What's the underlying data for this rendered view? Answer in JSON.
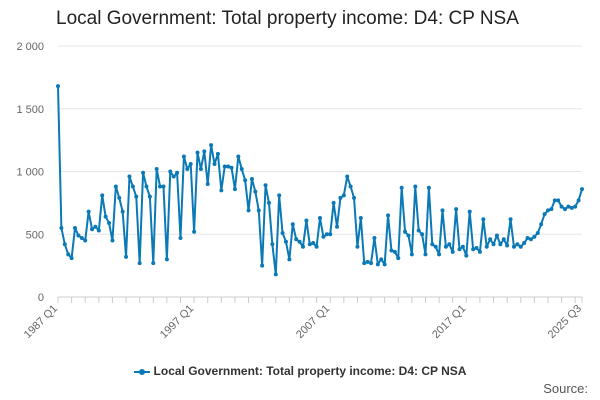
{
  "chart_data": {
    "type": "line",
    "title": "Local Government: Total property income: D4: CP NSA",
    "xlabel": "",
    "ylabel": "",
    "ylim": [
      0,
      2000
    ],
    "yticks": [
      "0",
      "500",
      "1 000",
      "1 500",
      "2 000"
    ],
    "ytick_values": [
      0,
      500,
      1000,
      1500,
      2000
    ],
    "xticks": [
      "1987 Q1",
      "1997 Q1",
      "2007 Q1",
      "2017 Q1",
      "2025 Q3"
    ],
    "xtick_positions": [
      0,
      40,
      80,
      120,
      154
    ],
    "grid": true,
    "legend_position": "bottom",
    "series": [
      {
        "name": "Local Government: Total property income: D4: CP NSA",
        "color": "#0a79b6",
        "values": [
          1680,
          550,
          420,
          340,
          310,
          550,
          490,
          470,
          450,
          680,
          540,
          560,
          530,
          810,
          640,
          590,
          450,
          880,
          790,
          680,
          320,
          960,
          880,
          800,
          270,
          990,
          880,
          800,
          270,
          1020,
          880,
          880,
          300,
          1000,
          960,
          990,
          470,
          1120,
          1020,
          1060,
          520,
          1150,
          1020,
          1160,
          900,
          1210,
          1060,
          1140,
          850,
          1040,
          1040,
          1030,
          860,
          1120,
          1020,
          930,
          690,
          940,
          840,
          690,
          250,
          890,
          750,
          420,
          180,
          810,
          510,
          440,
          300,
          580,
          460,
          440,
          400,
          610,
          420,
          430,
          400,
          630,
          480,
          500,
          500,
          750,
          560,
          790,
          810,
          960,
          880,
          790,
          400,
          630,
          270,
          280,
          270,
          470,
          260,
          300,
          260,
          650,
          370,
          360,
          310,
          870,
          520,
          490,
          340,
          880,
          530,
          500,
          340,
          870,
          420,
          400,
          340,
          690,
          400,
          420,
          360,
          700,
          380,
          400,
          330,
          680,
          380,
          390,
          360,
          620,
          400,
          460,
          420,
          490,
          420,
          460,
          410,
          620,
          400,
          420,
          400,
          430,
          470,
          460,
          480,
          510,
          580,
          660,
          690,
          700,
          770,
          770,
          720,
          700,
          720,
          710,
          720,
          770,
          860
        ]
      }
    ]
  },
  "legend": {
    "label": "Local Government: Total property income: D4: CP NSA"
  },
  "source": {
    "label": "Source:"
  }
}
